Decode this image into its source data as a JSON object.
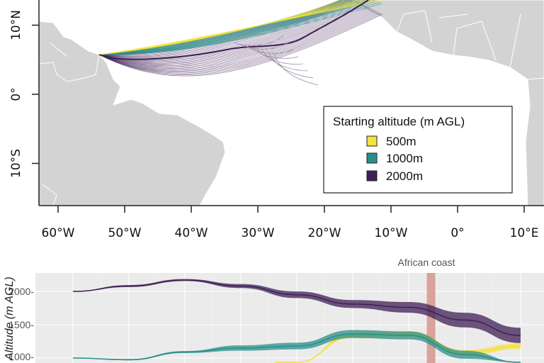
{
  "map": {
    "lat_labels": [
      "10°N",
      "0°",
      "10°S"
    ],
    "lat_values": [
      10,
      0,
      -10
    ],
    "lon_labels": [
      "60°W",
      "50°W",
      "40°W",
      "30°W",
      "20°W",
      "10°W",
      "0°",
      "10°E"
    ],
    "lon_values": [
      -60,
      -50,
      -40,
      -30,
      -20,
      -10,
      0,
      10
    ],
    "legend": {
      "title": "Starting altitude (m AGL)",
      "items": [
        {
          "label": "500m",
          "color": "#f5e23a"
        },
        {
          "label": "1000m",
          "color": "#2a8f8a"
        },
        {
          "label": "2000m",
          "color": "#3f1f55"
        }
      ]
    },
    "land_color": "#d3d3d3"
  },
  "chart_data": {
    "type": "line",
    "title": "",
    "annotation": "African coast",
    "annotation_x": 6.4,
    "xlabel": "",
    "ylabel": "Altitude (m AGL)",
    "ylim": [
      850,
      2250
    ],
    "xlim": [
      -0.3,
      8.4
    ],
    "y_ticks": [
      1000,
      1500,
      2000
    ],
    "y_tick_labels": [
      "1000-",
      "1500-",
      "2000-"
    ],
    "x": [
      0,
      1,
      2,
      3,
      4,
      5,
      6,
      7,
      8
    ],
    "series": [
      {
        "name": "2000m",
        "color": "#3f1f55",
        "values": [
          2000,
          2080,
          2170,
          2080,
          1950,
          1810,
          1760,
          1570,
          1340
        ],
        "spread": [
          5,
          15,
          15,
          30,
          50,
          60,
          80,
          110,
          115
        ]
      },
      {
        "name": "1000m",
        "color": "#2a8f8a",
        "values": [
          1000,
          975,
          1090,
          1150,
          1180,
          1360,
          1340,
          1050,
          880
        ],
        "spread": [
          5,
          10,
          15,
          40,
          50,
          60,
          60,
          60,
          60
        ]
      },
      {
        "name": "500m",
        "color": "#f5e23a",
        "values": [
          null,
          null,
          null,
          null,
          820,
          1340,
          1360,
          1080,
          1180
        ],
        "spread": [
          0,
          0,
          0,
          0,
          40,
          40,
          40,
          40,
          40
        ]
      }
    ]
  }
}
